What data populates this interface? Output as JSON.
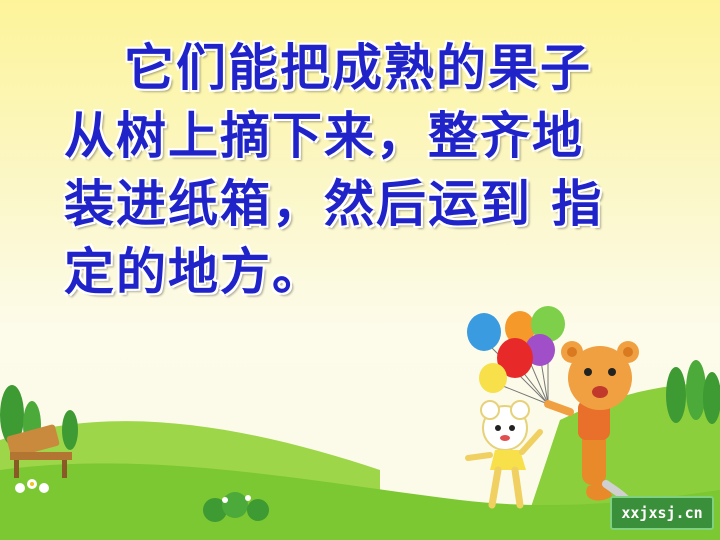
{
  "slide": {
    "text_lines": [
      "它们能把成熟的果子",
      "从树上摘下来，整齐地",
      "装进纸箱，然后运到 指",
      "定的地方。"
    ]
  },
  "watermark": {
    "text": "xxjxsj.cn"
  },
  "colors": {
    "text": "#1f23c8",
    "grass": "#7cc832",
    "background": "#fdf49a"
  },
  "icons": [
    "bench-icon",
    "balloon-icon",
    "bear-character",
    "sheep-character",
    "tree-icon",
    "flower-bush-icon"
  ]
}
